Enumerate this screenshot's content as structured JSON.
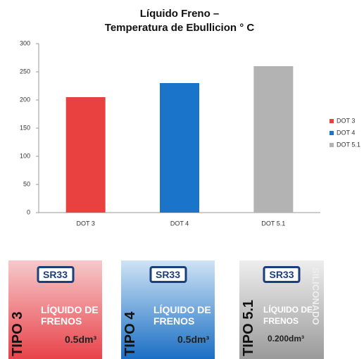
{
  "chart_data": {
    "type": "bar",
    "title": [
      "Líquido Freno –",
      "Temperatura de Ebullicion ° C"
    ],
    "categories": [
      "DOT 3",
      "DOT 4",
      "DOT 5.1"
    ],
    "values": [
      205,
      230,
      260
    ],
    "colors": [
      "#e8413f",
      "#1a74c9",
      "#b3b3b3"
    ],
    "ylim": [
      0,
      300
    ],
    "yticks": [
      0,
      50,
      100,
      150,
      200,
      250,
      300
    ],
    "grid": false,
    "legend": "right"
  },
  "products": [
    {
      "brand": "SR33",
      "type": "TIPO 3",
      "name": [
        "LÍQUIDO DE",
        "FRENOS"
      ],
      "volume": "0.5dm³"
    },
    {
      "brand": "SR33",
      "type": "TIPO 4",
      "name": [
        "LÍQUIDO DE",
        "FRENOS"
      ],
      "volume": "0.5dm³"
    },
    {
      "brand": "SR33",
      "type": "TIPO 5.1",
      "name": [
        "LÍQUIDO DE",
        "FRENOS"
      ],
      "volume": "0.200dm³",
      "note": "SILICONADO"
    }
  ]
}
